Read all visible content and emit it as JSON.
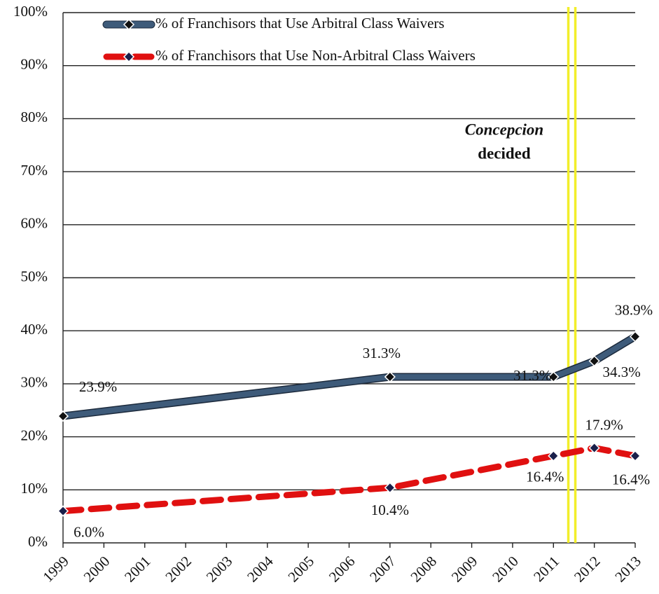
{
  "chart_data": {
    "type": "line",
    "xlim": [
      1999,
      2013
    ],
    "xticks": [
      1999,
      2000,
      2001,
      2002,
      2003,
      2004,
      2005,
      2006,
      2007,
      2008,
      2009,
      2010,
      2011,
      2012,
      2013
    ],
    "ylim": [
      0,
      100
    ],
    "yticks": [
      {
        "value": 0,
        "label": "0%"
      },
      {
        "value": 10,
        "label": "10%"
      },
      {
        "value": 20,
        "label": "20%"
      },
      {
        "value": 30,
        "label": "30%"
      },
      {
        "value": 40,
        "label": "40%"
      },
      {
        "value": 50,
        "label": "50%"
      },
      {
        "value": 60,
        "label": "60%"
      },
      {
        "value": 70,
        "label": "70%"
      },
      {
        "value": 80,
        "label": "80%"
      },
      {
        "value": 90,
        "label": "90%"
      },
      {
        "value": 100,
        "label": "100%"
      }
    ],
    "grid": true,
    "series": [
      {
        "name": "% of Franchisors that Use Arbitral Class Waivers",
        "color": "#3e5b7a",
        "dashed": false,
        "x": [
          1999,
          2007,
          2011,
          2012,
          2013
        ],
        "values": [
          23.9,
          31.3,
          31.3,
          34.3,
          38.9
        ],
        "value_labels": [
          "23.9%",
          "31.3%",
          "31.3%",
          "34.3%",
          "38.9%"
        ]
      },
      {
        "name": "% of Franchisors that Use Non-Arbitral Class Waivers",
        "color": "#e01010",
        "dashed": true,
        "x": [
          1999,
          2007,
          2011,
          2012,
          2013
        ],
        "values": [
          6.0,
          10.4,
          16.4,
          17.9,
          16.4
        ],
        "value_labels": [
          "6.0%",
          "10.4%",
          "16.4%",
          "17.9%",
          "16.4%"
        ]
      }
    ],
    "annotation": {
      "x": 2011.45,
      "lines": [
        "Concepcion",
        "decided"
      ],
      "color": "#f2ee2a"
    }
  }
}
